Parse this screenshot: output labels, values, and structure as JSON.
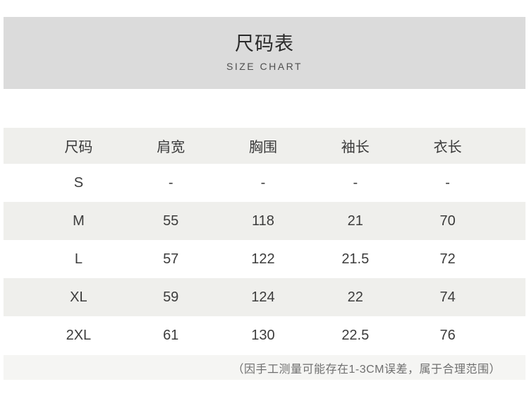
{
  "header": {
    "title": "尺码表",
    "subtitle": "SIZE CHART"
  },
  "chart_data": {
    "type": "table",
    "title": "尺码表 SIZE CHART",
    "columns": [
      "尺码",
      "肩宽",
      "胸围",
      "袖长",
      "衣长"
    ],
    "rows": [
      [
        "S",
        "-",
        "-",
        "-",
        "-"
      ],
      [
        "M",
        "55",
        "118",
        "21",
        "70"
      ],
      [
        "L",
        "57",
        "122",
        "21.5",
        "72"
      ],
      [
        "XL",
        "59",
        "124",
        "22",
        "74"
      ],
      [
        "2XL",
        "61",
        "130",
        "22.5",
        "76"
      ]
    ]
  },
  "table": {
    "columns": [
      "尺码",
      "肩宽",
      "胸围",
      "袖长",
      "衣长"
    ],
    "rows": [
      [
        "S",
        "-",
        "-",
        "-",
        "-"
      ],
      [
        "M",
        "55",
        "118",
        "21",
        "70"
      ],
      [
        "L",
        "57",
        "122",
        "21.5",
        "72"
      ],
      [
        "XL",
        "59",
        "124",
        "22",
        "74"
      ],
      [
        "2XL",
        "61",
        "130",
        "22.5",
        "76"
      ]
    ]
  },
  "footnote": "（因手工测量可能存在1-3CM误差，属于合理范围）",
  "colors": {
    "title_bar_bg": "#dbdbdb",
    "row_alt_bg": "#efefec",
    "footnote_bg": "#f5f5f3",
    "primary_text": "#3c3c3c",
    "footnote_text": "#6f6f6f"
  }
}
